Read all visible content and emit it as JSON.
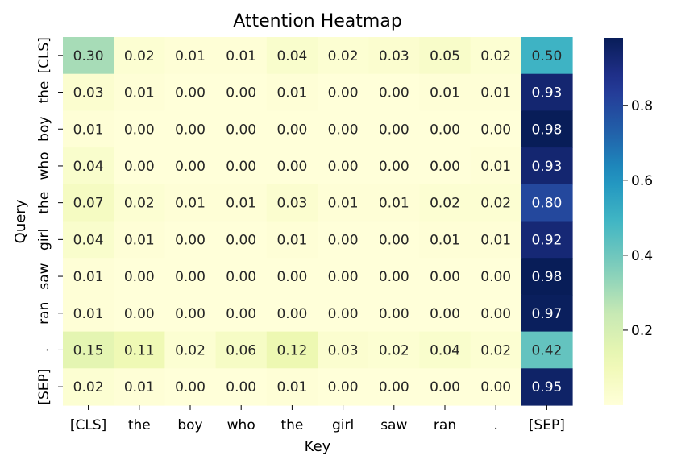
{
  "chart_data": {
    "type": "heatmap",
    "title": "Attention Heatmap",
    "xlabel": "Key",
    "ylabel": "Query",
    "x_categories": [
      "[CLS]",
      "the",
      "boy",
      "who",
      "the",
      "girl",
      "saw",
      "ran",
      ".",
      "[SEP]"
    ],
    "y_categories": [
      "[CLS]",
      "the",
      "boy",
      "who",
      "the",
      "girl",
      "saw",
      "ran",
      ".",
      "[SEP]"
    ],
    "values": [
      [
        0.3,
        0.02,
        0.01,
        0.01,
        0.04,
        0.02,
        0.03,
        0.05,
        0.02,
        0.5
      ],
      [
        0.03,
        0.01,
        0.0,
        0.0,
        0.01,
        0.0,
        0.0,
        0.01,
        0.01,
        0.93
      ],
      [
        0.01,
        0.0,
        0.0,
        0.0,
        0.0,
        0.0,
        0.0,
        0.0,
        0.0,
        0.98
      ],
      [
        0.04,
        0.0,
        0.0,
        0.0,
        0.0,
        0.0,
        0.0,
        0.0,
        0.01,
        0.93
      ],
      [
        0.07,
        0.02,
        0.01,
        0.01,
        0.03,
        0.01,
        0.01,
        0.02,
        0.02,
        0.8
      ],
      [
        0.04,
        0.01,
        0.0,
        0.0,
        0.01,
        0.0,
        0.0,
        0.01,
        0.01,
        0.92
      ],
      [
        0.01,
        0.0,
        0.0,
        0.0,
        0.0,
        0.0,
        0.0,
        0.0,
        0.0,
        0.98
      ],
      [
        0.01,
        0.0,
        0.0,
        0.0,
        0.0,
        0.0,
        0.0,
        0.0,
        0.0,
        0.97
      ],
      [
        0.15,
        0.11,
        0.02,
        0.06,
        0.12,
        0.03,
        0.02,
        0.04,
        0.02,
        0.42
      ],
      [
        0.02,
        0.01,
        0.0,
        0.0,
        0.01,
        0.0,
        0.0,
        0.0,
        0.0,
        0.95
      ]
    ],
    "value_format": "0.00",
    "colormap": "YlGnBu",
    "colorbar": {
      "vmin": 0.0,
      "vmax": 0.98,
      "ticks": [
        0.2,
        0.4,
        0.6,
        0.8
      ],
      "tick_labels": [
        "0.2",
        "0.4",
        "0.6",
        "0.8"
      ]
    },
    "grid": false,
    "legend": "none"
  }
}
